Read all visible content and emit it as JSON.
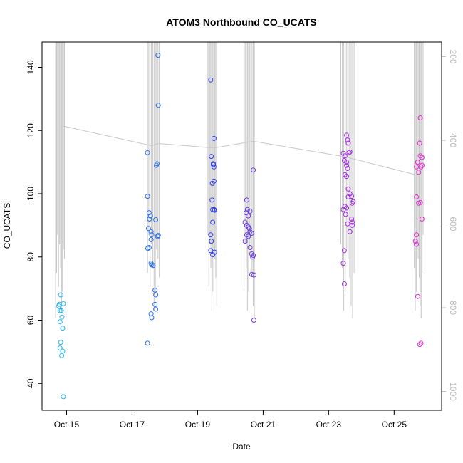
{
  "chart_data": {
    "type": "scatter",
    "title": "ATOM3 Northbound CO_UCATS",
    "xlabel": "Date",
    "ylabel": "CO_UCATS",
    "x_unit": "day of October",
    "xlim": [
      14.25,
      26.45
    ],
    "ylim": [
      31.5,
      148
    ],
    "x_ticks": [
      {
        "value": 15,
        "label": "Oct 15"
      },
      {
        "value": 17,
        "label": "Oct 17"
      },
      {
        "value": 19,
        "label": "Oct 19"
      },
      {
        "value": 21,
        "label": "Oct 21"
      },
      {
        "value": 23,
        "label": "Oct 23"
      },
      {
        "value": 25,
        "label": "Oct 25"
      }
    ],
    "y_ticks": [
      40,
      60,
      80,
      100,
      120,
      140
    ],
    "right_axis": {
      "color": "#bbbbbb",
      "reversed": true,
      "range": [
        1045,
        165
      ],
      "ticks": [
        200,
        400,
        600,
        800,
        1000
      ]
    },
    "series": [
      {
        "color": "#29b6f6",
        "points": [
          [
            14.76,
            64.5
          ],
          [
            14.78,
            65.0
          ],
          [
            14.8,
            63.0
          ],
          [
            14.82,
            68.0
          ],
          [
            14.84,
            63.0
          ],
          [
            14.8,
            59.5
          ],
          [
            14.9,
            65.2
          ],
          [
            14.86,
            61.0
          ],
          [
            14.88,
            57.5
          ],
          [
            14.82,
            53.0
          ],
          [
            14.8,
            51.2
          ],
          [
            14.88,
            50.2
          ],
          [
            14.85,
            48.8
          ],
          [
            14.9,
            35.8
          ]
        ]
      },
      {
        "color": "#2b6fe8",
        "points": [
          [
            17.47,
            113.0
          ],
          [
            17.47,
            99.2
          ],
          [
            17.52,
            94.0
          ],
          [
            17.56,
            93.0
          ],
          [
            17.5,
            89.0
          ],
          [
            17.58,
            88.0
          ],
          [
            17.6,
            87.0
          ],
          [
            17.58,
            85.5
          ],
          [
            17.52,
            83.0
          ],
          [
            17.48,
            82.7
          ],
          [
            17.58,
            78.0
          ],
          [
            17.6,
            77.5
          ],
          [
            17.64,
            77.3
          ],
          [
            17.7,
            69.5
          ],
          [
            17.72,
            68.0
          ],
          [
            17.7,
            65.0
          ],
          [
            17.72,
            63.5
          ],
          [
            17.58,
            62.0
          ],
          [
            17.6,
            60.8
          ],
          [
            17.47,
            52.7
          ],
          [
            17.74,
            109.0
          ],
          [
            17.76,
            109.5
          ],
          [
            17.78,
            86.5
          ],
          [
            17.8,
            86.8
          ],
          [
            17.72,
            91.8
          ],
          [
            17.53,
            92.0
          ],
          [
            17.8,
            128.0
          ],
          [
            17.79,
            143.8
          ]
        ]
      },
      {
        "color": "#2f3de8",
        "points": [
          [
            19.4,
            136.0
          ],
          [
            19.42,
            111.8
          ],
          [
            19.5,
            117.5
          ],
          [
            19.48,
            109.5
          ],
          [
            19.5,
            108.5
          ],
          [
            19.5,
            104.0
          ],
          [
            19.45,
            103.3
          ],
          [
            19.44,
            98.0
          ],
          [
            19.46,
            95.0
          ],
          [
            19.5,
            95.0
          ],
          [
            19.52,
            94.8
          ],
          [
            19.46,
            91.0
          ],
          [
            19.4,
            87.0
          ],
          [
            19.42,
            85.0
          ],
          [
            19.4,
            82.0
          ],
          [
            19.46,
            80.7
          ],
          [
            19.52,
            81.5
          ],
          [
            19.48,
            109.2
          ]
        ]
      },
      {
        "color": "#6a3be0",
        "points": [
          [
            20.5,
            98.0
          ],
          [
            20.48,
            94.0
          ],
          [
            20.52,
            95.0
          ],
          [
            20.55,
            93.0
          ],
          [
            20.45,
            91.0
          ],
          [
            20.5,
            90.0
          ],
          [
            20.55,
            89.5
          ],
          [
            20.6,
            94.5
          ],
          [
            20.58,
            89.0
          ],
          [
            20.6,
            88.0
          ],
          [
            20.65,
            87.5
          ],
          [
            20.5,
            87.0
          ],
          [
            20.55,
            86.5
          ],
          [
            20.45,
            85.0
          ],
          [
            20.6,
            83.0
          ],
          [
            20.65,
            81.0
          ],
          [
            20.7,
            80.5
          ],
          [
            20.68,
            80.0
          ],
          [
            20.65,
            74.5
          ],
          [
            20.72,
            74.3
          ],
          [
            20.7,
            107.5
          ],
          [
            20.72,
            60.0
          ]
        ]
      },
      {
        "color": "#a32be0",
        "points": [
          [
            23.45,
            112.8
          ],
          [
            23.5,
            112.0
          ],
          [
            23.55,
            110.0
          ],
          [
            23.48,
            110.5
          ],
          [
            23.55,
            109.0
          ],
          [
            23.62,
            113.0
          ],
          [
            23.65,
            113.2
          ],
          [
            23.58,
            108.0
          ],
          [
            23.55,
            105.5
          ],
          [
            23.5,
            106.0
          ],
          [
            23.6,
            101.5
          ],
          [
            23.65,
            100.0
          ],
          [
            23.6,
            99.0
          ],
          [
            23.7,
            99.2
          ],
          [
            23.72,
            97.0
          ],
          [
            23.5,
            96.0
          ],
          [
            23.55,
            95.5
          ],
          [
            23.45,
            95.0
          ],
          [
            23.52,
            93.5
          ],
          [
            23.58,
            90.5
          ],
          [
            23.65,
            88.0
          ],
          [
            23.72,
            90.0
          ],
          [
            23.72,
            91.0
          ],
          [
            23.75,
            97.5
          ],
          [
            23.7,
            92.0
          ],
          [
            23.55,
            118.5
          ],
          [
            23.58,
            117.0
          ],
          [
            23.6,
            116.0
          ],
          [
            23.48,
            82.0
          ],
          [
            23.45,
            78.0
          ],
          [
            23.48,
            71.5
          ]
        ]
      },
      {
        "color": "#e02bd0",
        "points": [
          [
            25.68,
            108.5
          ],
          [
            25.72,
            110.0
          ],
          [
            25.8,
            112.0
          ],
          [
            25.85,
            111.5
          ],
          [
            25.75,
            106.8
          ],
          [
            25.82,
            108.5
          ],
          [
            25.85,
            109.0
          ],
          [
            25.78,
            116.0
          ],
          [
            25.8,
            124.0
          ],
          [
            25.68,
            99.0
          ],
          [
            25.75,
            97.0
          ],
          [
            25.8,
            97.2
          ],
          [
            25.85,
            92.0
          ],
          [
            25.68,
            87.0
          ],
          [
            25.65,
            85.0
          ],
          [
            25.68,
            84.0
          ],
          [
            25.72,
            67.5
          ],
          [
            25.78,
            52.3
          ],
          [
            25.82,
            52.7
          ]
        ]
      }
    ],
    "altitude_profile": {
      "color": "#c8c8c8",
      "summit_points": [
        [
          14.86,
          1.0
        ],
        [
          17.6,
          0.91
        ],
        [
          17.8,
          0.92
        ],
        [
          19.5,
          0.9
        ],
        [
          20.7,
          0.93
        ],
        [
          23.5,
          0.86
        ],
        [
          25.62,
          0.78
        ]
      ],
      "flight_windows": [
        [
          14.65,
          14.95
        ],
        [
          17.45,
          17.85
        ],
        [
          19.3,
          19.6
        ],
        [
          20.4,
          20.75
        ],
        [
          23.35,
          23.8
        ],
        [
          25.6,
          25.9
        ]
      ]
    }
  }
}
